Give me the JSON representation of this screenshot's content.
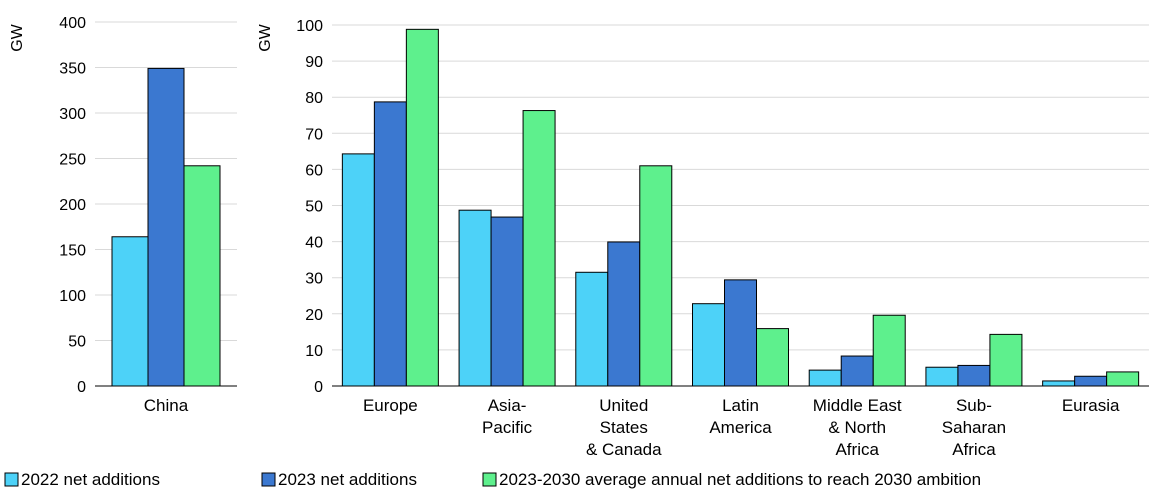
{
  "chart_data": [
    {
      "type": "bar",
      "ylabel": "GW",
      "ylim": [
        0,
        400
      ],
      "yticks": [
        0,
        50,
        100,
        150,
        200,
        250,
        300,
        350,
        400
      ],
      "grid": true,
      "categories": [
        [
          "China"
        ]
      ],
      "series": [
        {
          "name": "2022 net additions",
          "values": [
            164
          ],
          "color": "#4dd2f8"
        },
        {
          "name": "2023 net additions",
          "values": [
            349
          ],
          "color": "#3b78d0"
        },
        {
          "name": "2023-2030 average annual net additions to reach 2030 ambition",
          "values": [
            242
          ],
          "color": "#5ef08d"
        }
      ]
    },
    {
      "type": "bar",
      "ylabel": "GW",
      "ylim": [
        0,
        100
      ],
      "yticks": [
        0,
        10,
        20,
        30,
        40,
        50,
        60,
        70,
        80,
        90,
        100
      ],
      "grid": true,
      "categories": [
        [
          "Europe"
        ],
        [
          "Asia-",
          "Pacific"
        ],
        [
          "United",
          "States",
          "& Canada"
        ],
        [
          "Latin",
          "America"
        ],
        [
          "Middle East",
          "& North",
          "Africa"
        ],
        [
          "Sub-",
          "Saharan",
          "Africa"
        ],
        [
          "Eurasia"
        ]
      ],
      "series": [
        {
          "name": "2022 net additions",
          "values": [
            64.3,
            48.7,
            31.5,
            22.8,
            4.4,
            5.2,
            1.4
          ],
          "color": "#4dd2f8"
        },
        {
          "name": "2023 net additions",
          "values": [
            78.7,
            46.8,
            39.9,
            29.4,
            8.3,
            5.7,
            2.7
          ],
          "color": "#3b78d0"
        },
        {
          "name": "2023-2030 average annual net additions to reach 2030 ambition",
          "values": [
            98.8,
            76.3,
            61.0,
            15.9,
            19.6,
            14.3,
            3.9
          ],
          "color": "#5ef08d"
        }
      ]
    }
  ],
  "legend": {
    "position": "bottom",
    "items": [
      {
        "label": "2022 net additions",
        "color": "#4dd2f8"
      },
      {
        "label": "2023 net additions",
        "color": "#3b78d0"
      },
      {
        "label": "2023-2030 average annual net additions to reach 2030 ambition",
        "color": "#5ef08d"
      }
    ]
  }
}
